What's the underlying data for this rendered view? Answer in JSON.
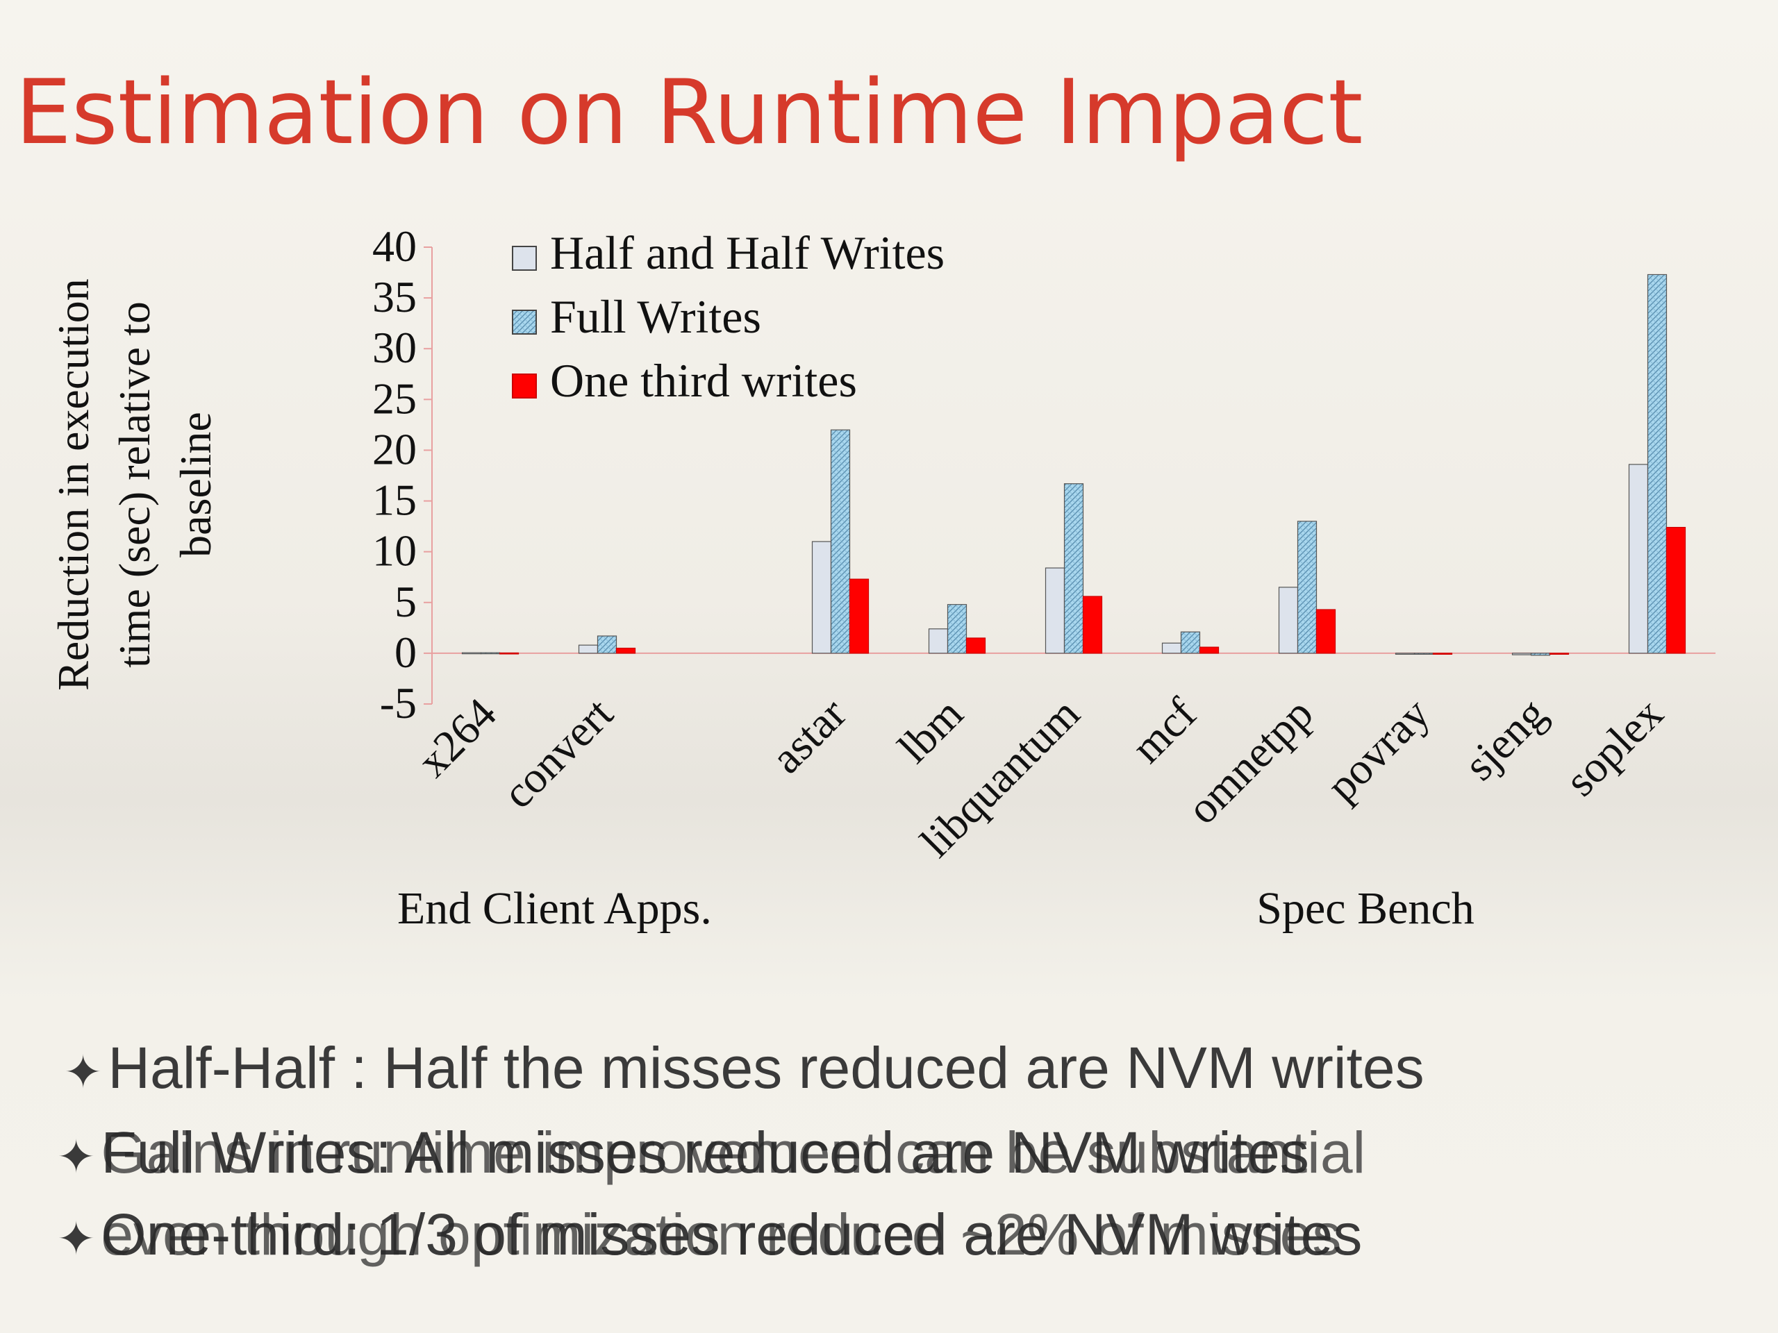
{
  "slide": {
    "title": "Estimation on Runtime Impact",
    "bullets": [
      "Half-Half : Half the misses reduced are NVM writes",
      "Full Writes: All misses reduced are NVM writes",
      "One-third: 1/3 of misses reduced are NVM writes"
    ],
    "overlay_text": [
      "Gains in runtime improvement can be substantial",
      "even though optimization reduce ~2% of misses"
    ],
    "bullet_symbol": "✦"
  },
  "chart_data": {
    "type": "bar",
    "ylabel_lines": [
      "Reduction in execution",
      "time (sec) relative to",
      "baseline"
    ],
    "ylim": [
      -5,
      40
    ],
    "yticks": [
      40,
      35,
      30,
      25,
      20,
      15,
      10,
      5,
      0,
      -5
    ],
    "categories": [
      "x264",
      "convert",
      "",
      "astar",
      "lbm",
      "libquantum",
      "mcf",
      "omnetpp",
      "povray",
      "sjeng",
      "soplex"
    ],
    "groups": [
      {
        "label": "End Client Apps."
      },
      {
        "label": "Spec Bench"
      }
    ],
    "series": [
      {
        "name": "Half and Half Writes",
        "color": "#dde3ec",
        "values": [
          0.05,
          0.8,
          null,
          11.0,
          2.4,
          8.4,
          1.0,
          6.5,
          -0.05,
          -0.15,
          18.6
        ]
      },
      {
        "name": "Full Writes",
        "color": "#a9d7ee",
        "values": [
          0.05,
          1.7,
          null,
          22.0,
          4.8,
          16.7,
          2.1,
          13.0,
          -0.05,
          -0.2,
          37.3
        ]
      },
      {
        "name": "One third writes",
        "color": "#ff0000",
        "values": [
          0.03,
          0.5,
          null,
          7.3,
          1.5,
          5.6,
          0.6,
          4.3,
          -0.05,
          -0.1,
          12.4
        ]
      }
    ],
    "legend_position": "top-left",
    "grid": false,
    "axis_color": "#e8a0a0"
  }
}
